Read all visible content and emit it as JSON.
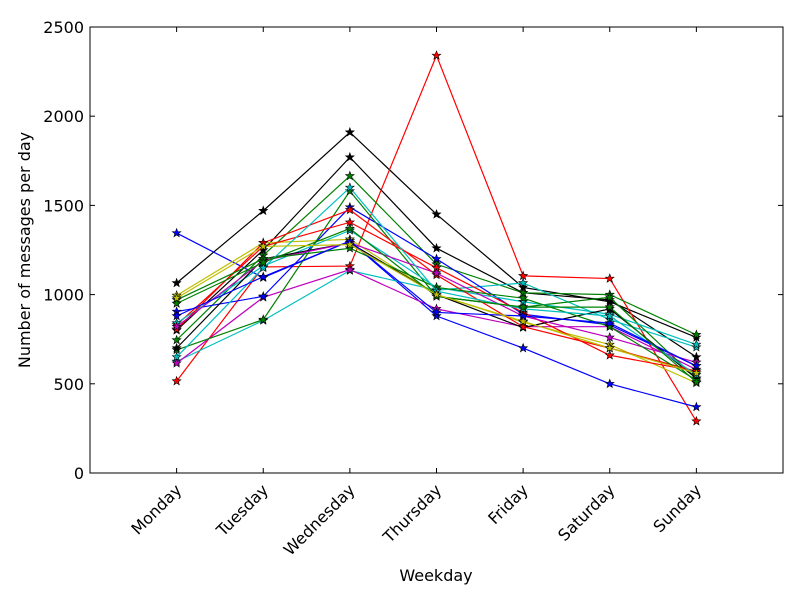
{
  "chart_data": {
    "type": "line",
    "title": "",
    "xlabel": "Weekday",
    "ylabel": "Number of messages per day",
    "categories": [
      "Monday",
      "Tuesday",
      "Wednesday",
      "Thursday",
      "Friday",
      "Saturday",
      "Sunday"
    ],
    "xlim": [
      -1,
      7
    ],
    "ylim": [
      0,
      2500
    ],
    "yticks": [
      0,
      500,
      1000,
      1500,
      2000,
      2500
    ],
    "grid": false,
    "marker": "star",
    "series": [
      {
        "color": "#000000",
        "values": [
          1065,
          1470,
          1910,
          1450,
          1040,
          960,
          760
        ]
      },
      {
        "color": "#000000",
        "values": [
          800,
          1250,
          1770,
          1260,
          1010,
          970,
          650
        ]
      },
      {
        "color": "#ff0000",
        "values": [
          515,
          1155,
          1160,
          2340,
          1105,
          1090,
          290
        ]
      },
      {
        "color": "#0000ff",
        "values": [
          1345,
          1095,
          1300,
          880,
          700,
          500,
          370
        ]
      },
      {
        "color": "#008000",
        "values": [
          745,
          1220,
          1665,
          1170,
          1010,
          1000,
          775
        ]
      },
      {
        "color": "#00bfbf",
        "values": [
          625,
          855,
          1135,
          1025,
          1065,
          860,
          705
        ]
      },
      {
        "color": "#bfbf00",
        "values": [
          995,
          1290,
          1310,
          1000,
          845,
          720,
          505
        ]
      },
      {
        "color": "#bf00bf",
        "values": [
          615,
          985,
          1140,
          920,
          820,
          820,
          580
        ]
      },
      {
        "color": "#0000ff",
        "values": [
          905,
          990,
          1490,
          1200,
          890,
          830,
          600
        ]
      },
      {
        "color": "#008000",
        "values": [
          690,
          860,
          1580,
          990,
          930,
          985,
          530
        ]
      },
      {
        "color": "#ff0000",
        "values": [
          830,
          1270,
          1405,
          1150,
          900,
          660,
          570
        ]
      },
      {
        "color": "#00bfbf",
        "values": [
          840,
          1160,
          1360,
          1040,
          960,
          890,
          720
        ]
      },
      {
        "color": "#000000",
        "values": [
          700,
          1200,
          1290,
          1000,
          815,
          920,
          530
        ]
      },
      {
        "color": "#ff0000",
        "values": [
          805,
          1290,
          1475,
          1110,
          820,
          700,
          570
        ]
      },
      {
        "color": "#bf00bf",
        "values": [
          820,
          1190,
          1290,
          1120,
          880,
          760,
          620
        ]
      },
      {
        "color": "#008000",
        "values": [
          970,
          1200,
          1260,
          1040,
          980,
          820,
          520
        ]
      },
      {
        "color": "#00bfbf",
        "values": [
          650,
          1150,
          1600,
          1020,
          920,
          880,
          550
        ]
      },
      {
        "color": "#0000ff",
        "values": [
          880,
          1100,
          1300,
          900,
          880,
          840,
          600
        ]
      },
      {
        "color": "#008000",
        "values": [
          950,
          1180,
          1370,
          990,
          930,
          930,
          510
        ]
      },
      {
        "color": "#bfbf00",
        "values": [
          980,
          1270,
          1280,
          1000,
          850,
          700,
          560
        ]
      }
    ]
  }
}
